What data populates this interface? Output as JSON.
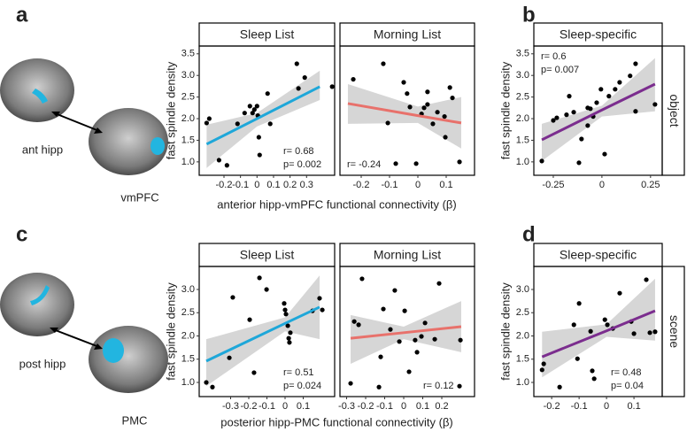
{
  "figure": {
    "panel_labels": [
      "a",
      "b",
      "c",
      "d"
    ],
    "brain_labels": [
      "ant hipp",
      "vmPFC",
      "post hipp",
      "PMC"
    ]
  },
  "chart_data": [
    {
      "type": "scatter",
      "title": "Sleep List",
      "ylabel": "fast spindle density",
      "xlabel": "anterior hipp-vmPFC functional connectivity (β)",
      "color": "#000000",
      "x": [
        -0.305,
        -0.289,
        -0.23,
        -0.182,
        -0.118,
        -0.075,
        -0.043,
        -0.027,
        -0.016,
        0,
        0.005,
        0.011,
        0.016,
        0.064,
        0.08,
        0.241,
        0.251,
        0.289,
        0.455
      ],
      "y": [
        1.9,
        2.0,
        1.04,
        0.92,
        1.88,
        2.13,
        2.29,
        2.13,
        2.21,
        2.29,
        2.07,
        1.57,
        1.16,
        2.58,
        1.88,
        3.27,
        2.7,
        2.95,
        2.74
      ],
      "fit": {
        "color": "#1ea7d9",
        "x": [
          -0.305,
          0,
          0.38
        ],
        "y": [
          1.41,
          2.0,
          2.74
        ],
        "lower": [
          0.86,
          1.82,
          2.43
        ],
        "upper": [
          1.86,
          2.13,
          3.11
        ]
      },
      "annotations": [
        "r= 0.68",
        "p= 0.002"
      ],
      "annotation_corner": "bottom-right",
      "xlim": [
        -0.35,
        0.47
      ],
      "ylim": [
        0.69,
        3.68
      ],
      "xticks": [
        -0.2,
        -0.1,
        0,
        0.1,
        0.2,
        0.3
      ],
      "yticks": [
        {
          "value": 1.0,
          "label": "1.0"
        },
        1.5,
        {
          "value": 2.0,
          "label": "2.0"
        },
        2.5,
        {
          "value": 3.0,
          "label": "3.0"
        },
        3.5
      ]
    },
    {
      "type": "scatter",
      "title": "Morning List",
      "color": "#000000",
      "x": [
        -0.228,
        -0.122,
        -0.106,
        -0.078,
        -0.05,
        -0.038,
        -0.028,
        -0.006,
        0.013,
        0.022,
        0.034,
        0.053,
        0.069,
        0.094,
        0.113,
        0.122,
        0.147,
        0.097,
        0.034
      ],
      "y": [
        2.91,
        3.27,
        1.9,
        0.96,
        2.84,
        2.58,
        2.27,
        0.96,
        2.11,
        2.25,
        2.33,
        1.88,
        2.15,
        2.05,
        2.72,
        2.48,
        1.0,
        1.57,
        2.62
      ],
      "fit": {
        "color": "#e8716b",
        "x": [
          -0.247,
          0,
          0.153
        ],
        "y": [
          2.35,
          2.07,
          1.9
        ],
        "lower": [
          1.88,
          1.9,
          1.31
        ],
        "upper": [
          2.8,
          2.28,
          2.5
        ]
      },
      "annotations": [
        "r= -0.24"
      ],
      "annotation_corner": "bottom-left",
      "xlim": [
        -0.275,
        0.2
      ],
      "ylim": [
        0.69,
        3.68
      ],
      "xticks": [
        -0.2,
        -0.1,
        0,
        0.1
      ]
    },
    {
      "type": "scatter",
      "title": "Sleep-specific",
      "strip": "object",
      "ylabel": "fast spindle density",
      "color": "#000000",
      "x": [
        -0.309,
        -0.25,
        -0.232,
        -0.182,
        -0.168,
        -0.145,
        -0.118,
        -0.105,
        -0.073,
        -0.073,
        -0.059,
        -0.045,
        -0.027,
        -0.005,
        0.014,
        0.036,
        0.068,
        0.091,
        0.145,
        0.173,
        0.173,
        0.273
      ],
      "y": [
        1.02,
        1.96,
        2.02,
        2.09,
        2.52,
        2.15,
        0.98,
        1.53,
        2.25,
        1.84,
        2.23,
        2.05,
        2.37,
        2.68,
        1.18,
        2.52,
        2.68,
        2.84,
        2.99,
        3.27,
        2.17,
        2.33
      ],
      "fit": {
        "color": "#7b2d8e",
        "x": [
          -0.309,
          0,
          0.273
        ],
        "y": [
          1.51,
          2.2,
          2.8
        ],
        "lower": [
          1.02,
          2.05,
          2.17
        ],
        "upper": [
          1.88,
          2.3,
          3.4
        ]
      },
      "annotations": [
        "r= 0.6",
        "p= 0.007"
      ],
      "annotation_corner": "top-left",
      "xlim": [
        -0.35,
        0.31
      ],
      "ylim": [
        0.69,
        3.68
      ],
      "xticks": [
        -0.25,
        0,
        0.25
      ],
      "yticks": [
        {
          "value": 1.0,
          "label": "1.0"
        },
        1.5,
        {
          "value": 2.0,
          "label": "2.0"
        },
        2.5,
        {
          "value": 3.0,
          "label": "3.0"
        },
        3.5
      ]
    },
    {
      "type": "scatter",
      "title": "Sleep List",
      "ylabel": "fast spindle density",
      "xlabel": "posterior hipp-PMC functional connectivity (β)",
      "color": "#000000",
      "x": [
        -0.434,
        -0.4,
        -0.307,
        -0.288,
        -0.195,
        -0.171,
        -0.141,
        -0.102,
        -0.005,
        0,
        0.005,
        0.015,
        0.02,
        0.029,
        0.024,
        0.151,
        0.19,
        0.205
      ],
      "y": [
        1.0,
        0.9,
        1.53,
        2.83,
        2.35,
        1.21,
        3.25,
        3.0,
        2.7,
        2.56,
        2.47,
        2.22,
        1.95,
        2.07,
        1.86,
        2.54,
        2.81,
        2.56
      ],
      "fit": {
        "color": "#1ea7d9",
        "x": [
          -0.434,
          0,
          0.19
        ],
        "y": [
          1.46,
          2.27,
          2.62
        ],
        "lower": [
          0.92,
          2.1,
          1.93
        ],
        "upper": [
          1.93,
          2.4,
          3.3
        ]
      },
      "annotations": [
        "r= 0.51",
        "p= 0.024"
      ],
      "annotation_corner": "bottom-right",
      "xlim": [
        -0.473,
        0.273
      ],
      "ylim": [
        0.695,
        3.495
      ],
      "xticks": [
        -0.3,
        -0.2,
        -0.1,
        0,
        0.1
      ],
      "yticks": [
        {
          "value": 1.0,
          "label": "1.0"
        },
        1.5,
        {
          "value": 2.0,
          "label": "2.0"
        },
        2.5,
        {
          "value": 3.0,
          "label": "3.0"
        }
      ]
    },
    {
      "type": "scatter",
      "title": "Morning List",
      "color": "#000000",
      "x": [
        -0.279,
        -0.26,
        -0.237,
        -0.219,
        -0.13,
        -0.121,
        -0.107,
        -0.07,
        -0.047,
        -0.023,
        0.005,
        0.028,
        0.06,
        0.07,
        0.093,
        0.112,
        0.163,
        0.186,
        0.293,
        0.298
      ],
      "y": [
        0.98,
        2.31,
        2.24,
        3.23,
        0.9,
        1.55,
        2.58,
        2.14,
        2.98,
        1.88,
        2.54,
        1.23,
        1.91,
        1.65,
        1.99,
        2.28,
        1.93,
        3.13,
        0.92,
        1.91
      ],
      "fit": {
        "color": "#e8716b",
        "x": [
          -0.279,
          0,
          0.302
        ],
        "y": [
          1.95,
          2.07,
          2.2
        ],
        "lower": [
          1.4,
          1.93,
          1.65
        ],
        "upper": [
          2.45,
          2.2,
          2.75
        ]
      },
      "annotations": [
        "r= 0.12"
      ],
      "annotation_corner": "bottom-right",
      "xlim": [
        -0.335,
        0.372
      ],
      "ylim": [
        0.695,
        3.495
      ],
      "xticks": [
        -0.3,
        -0.2,
        -0.1,
        0,
        0.1,
        0.2
      ]
    },
    {
      "type": "scatter",
      "title": "Sleep-specific",
      "strip": "scene",
      "ylabel": "fast spindle density",
      "color": "#000000",
      "x": [
        -0.235,
        -0.229,
        -0.171,
        -0.119,
        -0.106,
        -0.1,
        -0.058,
        -0.052,
        -0.045,
        -0.006,
        0.003,
        0.023,
        0.048,
        0.09,
        0.1,
        0.145,
        0.158,
        0.177
      ],
      "y": [
        1.27,
        1.4,
        0.9,
        2.24,
        1.51,
        2.7,
        2.1,
        1.25,
        1.08,
        2.35,
        2.24,
        2.16,
        2.92,
        2.31,
        2.05,
        3.21,
        2.07,
        2.09
      ],
      "fit": {
        "color": "#7b2d8e",
        "x": [
          -0.235,
          0,
          0.177
        ],
        "y": [
          1.55,
          2.11,
          2.54
        ],
        "lower": [
          1.11,
          1.98,
          1.9
        ],
        "upper": [
          2.09,
          2.25,
          3.23
        ]
      },
      "annotations": [
        "r= 0.48",
        "p= 0.04"
      ],
      "annotation_corner": "bottom-right",
      "xlim": [
        -0.265,
        0.203
      ],
      "ylim": [
        0.695,
        3.495
      ],
      "xticks": [
        -0.2,
        -0.1,
        0,
        0.1
      ],
      "yticks": [
        {
          "value": 1.0,
          "label": "1.0"
        },
        1.5,
        {
          "value": 2.0,
          "label": "2.0"
        },
        2.5,
        {
          "value": 3.0,
          "label": "3.0"
        }
      ]
    }
  ]
}
